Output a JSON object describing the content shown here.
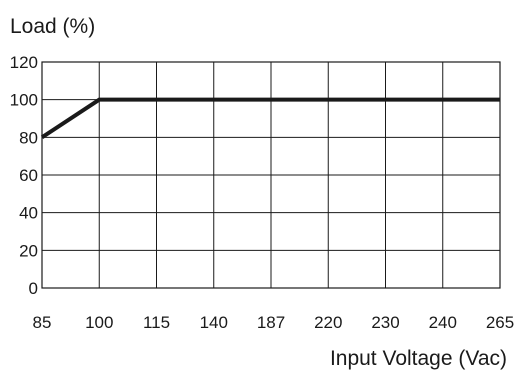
{
  "chart_data": {
    "type": "line",
    "title": "",
    "ylabel": "Load (%)",
    "xlabel": "Input Voltage (Vac)",
    "x_tick_labels": [
      "85",
      "100",
      "115",
      "140",
      "187",
      "220",
      "230",
      "240",
      "265"
    ],
    "y_tick_labels": [
      "0",
      "20",
      "40",
      "60",
      "80",
      "100",
      "120"
    ],
    "ylim": [
      0,
      120
    ],
    "grid": true,
    "series": [
      {
        "points": [
          {
            "x": "85",
            "y": 80
          },
          {
            "x": "100",
            "y": 100
          },
          {
            "x": "265",
            "y": 100
          }
        ]
      }
    ]
  }
}
